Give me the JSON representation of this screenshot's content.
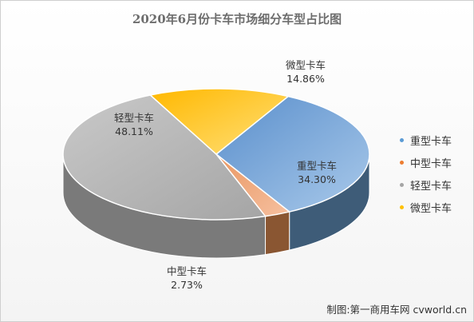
{
  "chart_data": {
    "type": "pie",
    "title": "2020年6月份卡车市场细分车型占比图",
    "slices": [
      {
        "name": "重型卡车",
        "value": 34.3,
        "label": "34.30%",
        "color": "#7eaedc"
      },
      {
        "name": "中型卡车",
        "value": 2.73,
        "label": "2.73%",
        "color": "#f0a878"
      },
      {
        "name": "轻型卡车",
        "value": 48.11,
        "label": "48.11%",
        "color": "#b4b4b4"
      },
      {
        "name": "微型卡车",
        "value": 14.86,
        "label": "14.86%",
        "color": "#ffc92e"
      }
    ],
    "legend_position": "right",
    "style": "3d"
  },
  "credit": "制图:第一商用车网 cvworld.cn"
}
